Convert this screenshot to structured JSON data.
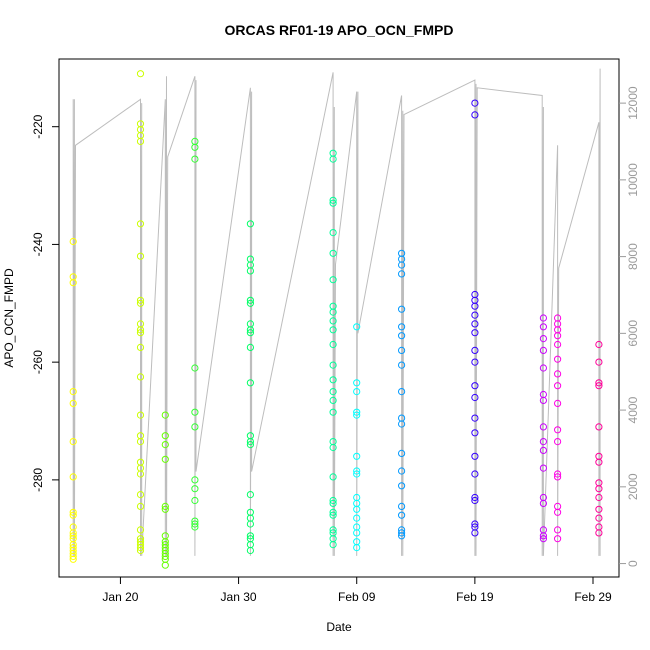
{
  "chart_data": {
    "type": "scatter",
    "title": "ORCAS RF01-19 APO_OCN_FMPD",
    "xlabel": "Date",
    "ylabel": "APO_OCN_FMPD",
    "x_ticks": [
      {
        "day": 20,
        "label": "Jan 20"
      },
      {
        "day": 30,
        "label": "Jan 30"
      },
      {
        "day": 40,
        "label": "Feb 09"
      },
      {
        "day": 50,
        "label": "Feb 19"
      },
      {
        "day": 60,
        "label": "Feb 29"
      }
    ],
    "xlim": [
      14.8,
      62.2
    ],
    "ylim": [
      -296.5,
      -208.5
    ],
    "y_ticks": [
      -220,
      -240,
      -260,
      -280
    ],
    "y2_ticks": [
      0,
      2000,
      4000,
      6000,
      8000,
      10000,
      12000
    ],
    "y2lim": [
      -350,
      13150
    ],
    "y2_series": "altitude",
    "series": [
      {
        "flight": "RF01",
        "day": 16.0,
        "color": "#FFFF00",
        "values": [
          -239.5,
          -245.5,
          -246.5,
          -265,
          -267,
          -273.5,
          -279.5,
          -285.5,
          -286,
          -288,
          -289,
          -290,
          -291,
          -292,
          -293,
          -293.5,
          -292.5,
          -291.5,
          -289.5
        ]
      },
      {
        "day": 21.7,
        "color": "#CCFF00",
        "values": [
          -211,
          -219.5,
          -220.5,
          -221.5,
          -222.5,
          -236.5,
          -242,
          -249.5,
          -250,
          -253.5,
          -254.5,
          -255,
          -257.5,
          -262.5,
          -269,
          -272.5,
          -273.5,
          -277,
          -278,
          -279,
          -282.5,
          -284.5,
          -288.5,
          -290,
          -290.5,
          -291,
          -291.5,
          -292
        ]
      },
      {
        "day": 23.8,
        "color": "#66FF00",
        "values": [
          -269,
          -272.5,
          -274,
          -276.5,
          -284.5,
          -285,
          -290.5,
          -291,
          -291.5,
          -292,
          -293.5,
          -294.5,
          -293,
          -292.5,
          -289.5
        ]
      },
      {
        "day": 26.3,
        "color": "#33FF33",
        "values": [
          -222.5,
          -223.5,
          -225.5,
          -261,
          -268.5,
          -271,
          -280,
          -281.5,
          -283.5,
          -287,
          -287.5,
          -288
        ]
      },
      {
        "day": 31.0,
        "color": "#00FF66",
        "values": [
          -236.5,
          -242.5,
          -243.5,
          -244.5,
          -249.5,
          -250,
          -253.5,
          -254.5,
          -255,
          -257.5,
          -263.5,
          -272.5,
          -273.5,
          -274,
          -282.5,
          -285.5,
          -286.5,
          -287.5,
          -289.5,
          -290,
          -291,
          -292
        ]
      },
      {
        "day": 38.0,
        "color": "#00FF99",
        "values": [
          -224.5,
          -225.5,
          -232.5,
          -233,
          -238,
          -241.5,
          -246,
          -250.5,
          -251.5,
          -253,
          -254.5,
          -257,
          -260.5,
          -263,
          -265,
          -266.5,
          -268.5,
          -273.5,
          -274.5,
          -279.5,
          -283.5,
          -284,
          -285.5,
          -286,
          -288.5,
          -289,
          -290,
          -291
        ]
      },
      {
        "day": 40.0,
        "color": "#00FFFF",
        "values": [
          -254,
          -263.5,
          -265,
          -268.5,
          -269,
          -276,
          -278.5,
          -279,
          -283,
          -284,
          -285,
          -286.5,
          -288,
          -289,
          -290.5,
          -291.5
        ]
      },
      {
        "day": 43.8,
        "color": "#0099FF",
        "values": [
          -241.5,
          -242.5,
          -243.5,
          -245,
          -251,
          -254,
          -255.5,
          -258,
          -260.5,
          -265,
          -269.5,
          -270.5,
          -275.5,
          -278.5,
          -281,
          -284.5,
          -286,
          -288.5,
          -289,
          -289.5
        ]
      },
      {
        "day": 50.0,
        "color": "#3300FF",
        "values": [
          -216,
          -218,
          -248.5,
          -249.5,
          -250.5,
          -252,
          -253.5,
          -255,
          -258,
          -260,
          -264,
          -266,
          -269.5,
          -272,
          -276,
          -279,
          -283,
          -283.5,
          -287.5,
          -288,
          -289
        ]
      },
      {
        "day": 55.8,
        "color": "#CC00FF",
        "values": [
          -252.5,
          -254,
          -256,
          -258,
          -261,
          -265.5,
          -266.5,
          -271,
          -273.5,
          -275,
          -278,
          -283,
          -284,
          -288.5,
          -289.5,
          -290
        ]
      },
      {
        "day": 57.0,
        "color": "#FF00E6",
        "values": [
          -252.5,
          -253.5,
          -254.5,
          -255.5,
          -257,
          -259.5,
          -262,
          -264,
          -267,
          -271.5,
          -273.5,
          -279,
          -279.5,
          -284.5,
          -285.5,
          -288.5,
          -290
        ]
      },
      {
        "day": 60.5,
        "color": "#FF0099",
        "values": [
          -257,
          -260,
          -263.5,
          -264,
          -271,
          -276,
          -277,
          -280.5,
          -281.5,
          -283,
          -285,
          -286.5,
          -288,
          -289
        ]
      }
    ],
    "altitude_path": [
      [
        16.0,
        1500
      ],
      [
        16.0,
        12100
      ],
      [
        16.0,
        9600
      ],
      [
        16.0,
        200
      ],
      [
        16.1,
        12100
      ],
      [
        16.1,
        200
      ],
      [
        16.2,
        10900
      ],
      [
        21.7,
        12100
      ],
      [
        21.7,
        200
      ],
      [
        21.8,
        12000
      ],
      [
        21.8,
        200
      ],
      [
        23.8,
        12100
      ],
      [
        23.8,
        200
      ],
      [
        23.9,
        12700
      ],
      [
        23.9,
        200
      ],
      [
        24.0,
        10600
      ],
      [
        26.3,
        12700
      ],
      [
        26.3,
        200
      ],
      [
        26.4,
        12600
      ],
      [
        26.4,
        2400
      ],
      [
        31.0,
        12400
      ],
      [
        31.0,
        200
      ],
      [
        31.1,
        12300
      ],
      [
        31.1,
        2400
      ],
      [
        38.0,
        12800
      ],
      [
        38.0,
        200
      ],
      [
        38.1,
        11900
      ],
      [
        38.1,
        200
      ],
      [
        38.2,
        7800
      ],
      [
        40.0,
        12300
      ],
      [
        40.0,
        200
      ],
      [
        40.1,
        12300
      ],
      [
        40.1,
        6000
      ],
      [
        43.8,
        12200
      ],
      [
        43.8,
        200
      ],
      [
        43.9,
        11800
      ],
      [
        43.9,
        200
      ],
      [
        44.0,
        11700
      ],
      [
        50.0,
        12600
      ],
      [
        50.0,
        200
      ],
      [
        50.1,
        12500
      ],
      [
        50.1,
        200
      ],
      [
        50.2,
        12400
      ],
      [
        55.7,
        12200
      ],
      [
        55.7,
        200
      ],
      [
        55.8,
        11900
      ],
      [
        55.8,
        200
      ],
      [
        57.0,
        10900
      ],
      [
        57.0,
        200
      ],
      [
        57.1,
        7700
      ],
      [
        60.5,
        11500
      ],
      [
        60.5,
        200
      ],
      [
        60.6,
        12900
      ],
      [
        60.6,
        200
      ]
    ]
  }
}
